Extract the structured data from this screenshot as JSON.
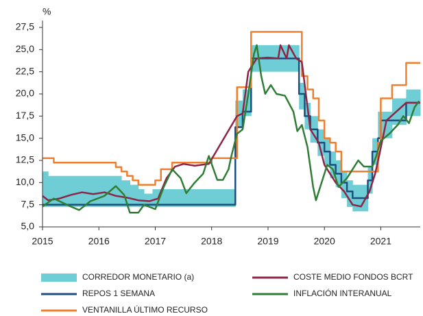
{
  "chart_data": {
    "type": "line",
    "y_label": "%",
    "xlim": [
      2015,
      2021.7
    ],
    "xticks": [
      2015,
      2016,
      2017,
      2018,
      2019,
      2020,
      2021
    ],
    "ylim": [
      5,
      27.5
    ],
    "yticks": [
      {
        "value": 5,
        "label": "5,0"
      },
      {
        "value": 7.5,
        "label": "7,5"
      },
      {
        "value": 10,
        "label": "10,0"
      },
      {
        "value": 12.5,
        "label": "12,5"
      },
      {
        "value": 15,
        "label": "15,0"
      },
      {
        "value": 17.5,
        "label": "17,5"
      },
      {
        "value": 20,
        "label": "20,0"
      },
      {
        "value": 22.5,
        "label": "22,5"
      },
      {
        "value": 25,
        "label": "25,0"
      },
      {
        "value": 27.5,
        "label": "27,5"
      }
    ],
    "series": [
      {
        "name": "CORREDOR MONETARIO (a)",
        "color": "#6fcdd5",
        "kind": "band",
        "x": [
          2015,
          2015.1,
          2016.4,
          2016.55,
          2016.7,
          2016.8,
          2016.95,
          2018.42,
          2018.55,
          2018.7,
          2019.55,
          2019.65,
          2019.75,
          2019.88,
          2020.0,
          2020.1,
          2020.2,
          2020.3,
          2020.4,
          2020.5,
          2020.77,
          2020.85,
          2020.95,
          2021.2,
          2021.45
        ],
        "low": [
          7.25,
          7.25,
          7.25,
          7.25,
          7.25,
          7.25,
          7.25,
          16.25,
          17.5,
          22.5,
          18.25,
          16,
          14.5,
          13,
          12,
          10.5,
          9.5,
          8.25,
          7.25,
          6.75,
          8.75,
          12,
          15,
          16.5,
          17.5
        ],
        "high": [
          11.25,
          10.75,
          10.25,
          9.75,
          9.25,
          8.75,
          9.25,
          19.25,
          20.5,
          25.5,
          21.25,
          19,
          17.5,
          16,
          15,
          13.5,
          12.5,
          11.25,
          10.25,
          9.75,
          11.75,
          15,
          18,
          19.5,
          20.5
        ]
      },
      {
        "name": "COSTE MEDIO FONDOS BCRT",
        "color": "#8e2445",
        "kind": "line",
        "x": [
          2015,
          2015.1,
          2015.3,
          2015.5,
          2015.7,
          2015.9,
          2016.1,
          2016.3,
          2016.5,
          2016.7,
          2016.9,
          2017.05,
          2017.2,
          2017.35,
          2017.5,
          2017.7,
          2017.95,
          2018.45,
          2018.55,
          2018.65,
          2018.8,
          2019.0,
          2019.18,
          2019.22,
          2019.33,
          2019.37,
          2019.5,
          2019.6,
          2019.75,
          2019.9,
          2020.0,
          2020.1,
          2020.2,
          2020.35,
          2020.5,
          2020.65,
          2020.8,
          2020.9,
          2020.97,
          2021.1,
          2021.45,
          2021.7
        ],
        "values": [
          8.5,
          8.0,
          8.2,
          8.6,
          8.9,
          8.7,
          8.9,
          8.5,
          8.3,
          8.0,
          7.9,
          8.2,
          10.5,
          11.8,
          12.1,
          11.9,
          12.1,
          17.5,
          17.8,
          22.5,
          24.0,
          24.1,
          24.0,
          25.5,
          24.0,
          25.5,
          24.0,
          23.6,
          16.0,
          14.5,
          12.0,
          11.0,
          10.0,
          9.0,
          7.5,
          7.3,
          9.0,
          11.0,
          13.0,
          17.0,
          19.0,
          19.0
        ]
      },
      {
        "name": "REPOS 1 SEMANA",
        "color": "#1c4e7e",
        "kind": "step",
        "x": [
          2015,
          2018.42,
          2018.55,
          2018.7,
          2019.55,
          2019.65,
          2019.75,
          2019.88,
          2020.0,
          2020.1,
          2020.2,
          2020.3,
          2020.4,
          2020.5,
          2020.77,
          2020.85,
          2020.95,
          2021.0,
          2021.45
        ],
        "values": [
          7.5,
          16.25,
          18,
          24,
          20,
          17.5,
          16,
          14.5,
          13.5,
          12,
          11,
          10,
          9,
          8.25,
          10.25,
          13.5,
          15,
          17,
          19
        ]
      },
      {
        "name": "INFLACIÓN INTERANUAL",
        "color": "#2f7d35",
        "kind": "line",
        "x": [
          2015,
          2015.2,
          2015.5,
          2015.65,
          2015.85,
          2016.1,
          2016.3,
          2016.45,
          2016.55,
          2016.7,
          2016.8,
          2017.0,
          2017.15,
          2017.3,
          2017.45,
          2017.55,
          2017.7,
          2017.85,
          2017.95,
          2018.1,
          2018.2,
          2018.3,
          2018.35,
          2018.45,
          2018.55,
          2018.65,
          2018.75,
          2018.8,
          2018.88,
          2018.95,
          2019.05,
          2019.15,
          2019.3,
          2019.45,
          2019.52,
          2019.6,
          2019.7,
          2019.8,
          2019.85,
          2019.95,
          2020.05,
          2020.15,
          2020.25,
          2020.4,
          2020.5,
          2020.6,
          2020.7,
          2020.85,
          2020.92,
          2021.0,
          2021.15,
          2021.3,
          2021.4,
          2021.5,
          2021.6,
          2021.68
        ],
        "values": [
          7.3,
          8.2,
          7.3,
          6.9,
          7.9,
          8.5,
          9.6,
          8.6,
          6.6,
          6.6,
          7.5,
          7.0,
          9.5,
          11.5,
          10.5,
          8.8,
          10.0,
          11.0,
          13.0,
          10.3,
          10.3,
          11.5,
          13.0,
          15.5,
          16.0,
          20.0,
          24.5,
          25.5,
          22.0,
          20.0,
          21.0,
          20.0,
          19.8,
          18.0,
          15.8,
          16.5,
          14.0,
          9.5,
          8.0,
          10.0,
          12.0,
          11.5,
          9.5,
          10.5,
          11.5,
          12.5,
          11.8,
          11.8,
          13.0,
          14.7,
          15.5,
          16.5,
          17.5,
          16.7,
          18.5,
          19.2
        ]
      },
      {
        "name": "VENTANILLA ÚLTIMO RECURSO",
        "color": "#ef7f2f",
        "kind": "step",
        "x": [
          2015,
          2015.2,
          2016.3,
          2016.4,
          2016.5,
          2016.6,
          2016.7,
          2017.0,
          2017.1,
          2017.3,
          2018.0,
          2018.45,
          2018.7,
          2019.6,
          2019.7,
          2019.8,
          2019.9,
          2020.0,
          2020.1,
          2020.2,
          2020.3,
          2020.95,
          2021.0,
          2021.2,
          2021.45
        ],
        "values": [
          12.75,
          12.25,
          11.75,
          11.25,
          10.75,
          10.25,
          9.75,
          10.25,
          11.5,
          12.25,
          12.75,
          20.75,
          27,
          22,
          20.5,
          19.5,
          17,
          15,
          14.5,
          13.5,
          11.25,
          14.5,
          19.5,
          21,
          23.5
        ]
      }
    ]
  }
}
